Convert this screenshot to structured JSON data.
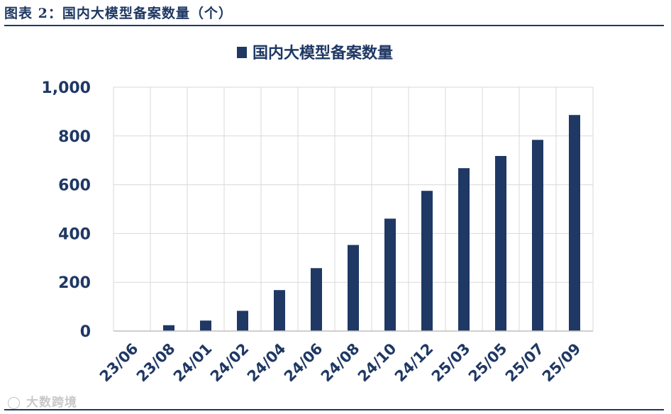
{
  "figure": {
    "title": "图表 2：国内大模型备案数量（个）"
  },
  "watermark": {
    "logo_text": "大数跨境"
  },
  "colors": {
    "bar": "#1f3864",
    "grid": "#d9d9d9",
    "axis_text": "#1f3864",
    "rule": "#1f3864"
  },
  "chart_data": {
    "type": "bar",
    "title": "",
    "legend": {
      "label": "国内大模型备案数量",
      "position": "top"
    },
    "xlabel": "",
    "ylabel": "",
    "categories": [
      "23/06",
      "23/08",
      "24/01",
      "24/02",
      "24/04",
      "24/06",
      "24/08",
      "24/10",
      "24/12",
      "25/03",
      "25/05",
      "25/07",
      "25/09"
    ],
    "series": [
      {
        "name": "国内大模型备案数量",
        "values": [
          1,
          24,
          43,
          83,
          168,
          258,
          353,
          461,
          575,
          668,
          718,
          784,
          886
        ]
      }
    ],
    "ylim": [
      0,
      1000
    ],
    "yticks": [
      0,
      200,
      400,
      600,
      800,
      1000
    ],
    "ytick_labels": [
      "0",
      "200",
      "400",
      "600",
      "800",
      "1,000"
    ],
    "grid": true
  }
}
